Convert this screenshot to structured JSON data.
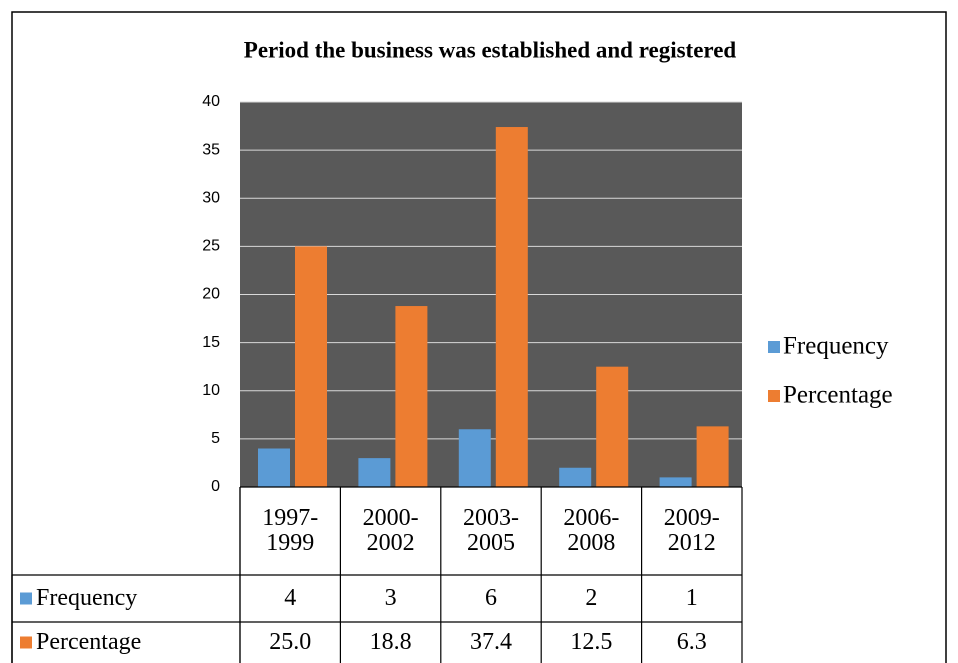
{
  "chart_data": {
    "type": "bar",
    "title": "Period the business was established and registered",
    "categories": [
      "1997-1999",
      "2000-2002",
      "2003-2005",
      "2006-2008",
      "2009-2012"
    ],
    "series": [
      {
        "name": "Frequency",
        "color": "#5b9bd5",
        "values": [
          4,
          3,
          6,
          2,
          1
        ]
      },
      {
        "name": "Percentage",
        "color": "#ed7d31",
        "values": [
          25.0,
          18.8,
          37.4,
          12.5,
          6.3
        ],
        "value_labels": [
          "25.0",
          "18.8",
          "37.4",
          "12.5",
          "6.3"
        ]
      }
    ],
    "ylim": [
      0,
      40
    ],
    "yticks": [
      0,
      5,
      10,
      15,
      20,
      25,
      30,
      35,
      40
    ],
    "grid": true,
    "legend": "right"
  }
}
